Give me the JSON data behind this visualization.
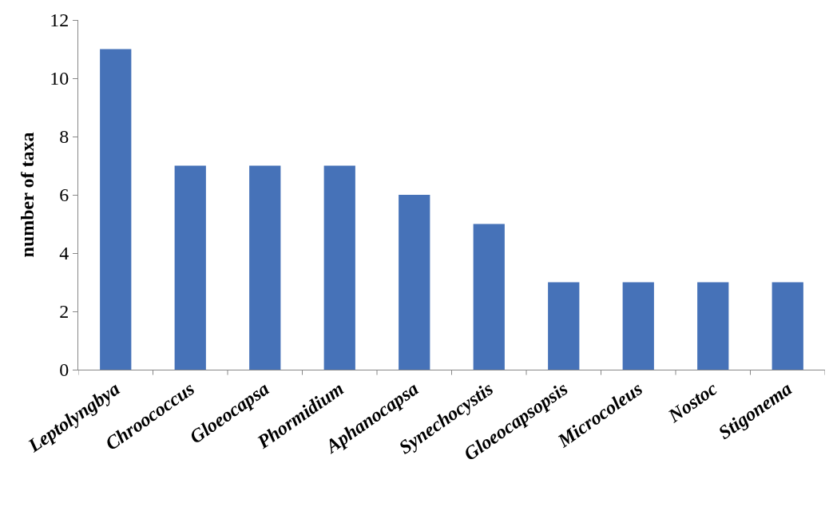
{
  "chart_data": {
    "type": "bar",
    "ylabel": "number of taxa",
    "categories": [
      "Leptolyngbya",
      "Chroococcus",
      "Gloeocapsa",
      "Phormidium",
      "Aphanocapsa",
      "Synechocystis",
      "Gloeocapsopsis",
      "Microcoleus",
      "Nostoc",
      "Stigonema"
    ],
    "values": [
      11,
      7,
      7,
      7,
      6,
      5,
      3,
      3,
      3,
      3
    ],
    "color": "#4672b8",
    "ylim": [
      0,
      12
    ],
    "yticks": [
      0,
      2,
      4,
      6,
      8,
      10,
      12
    ]
  }
}
